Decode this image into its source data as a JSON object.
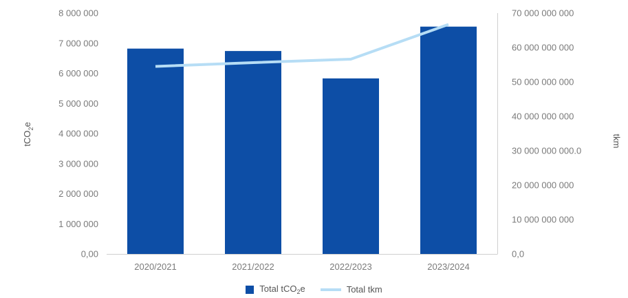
{
  "chart_data": {
    "type": "bar",
    "categories": [
      "2020/2021",
      "2021/2022",
      "2022/2023",
      "2023/2024"
    ],
    "series": [
      {
        "name": "Total tCO2e",
        "type": "bar",
        "axis": "left",
        "values": [
          6820000,
          6740000,
          5830000,
          7550000
        ],
        "color": "#0d4ea6"
      },
      {
        "name": "Total tkm",
        "type": "line",
        "axis": "right",
        "values": [
          54500000000,
          55600000000,
          56600000000,
          66700000000
        ],
        "color": "#b6ddf5"
      }
    ],
    "ylabel": "tCO2e",
    "ylabel_base": "tCO",
    "ylabel_sub": "2",
    "ylabel_suffix": "e",
    "y2label": "tkm",
    "ylim": [
      0,
      8000000
    ],
    "y2lim": [
      0,
      70000000000
    ],
    "yticks": [
      "0,00",
      "1 000 000",
      "2 000 000",
      "3 000 000",
      "4 000 000",
      "5 000 000",
      "6 000 000",
      "7 000 000",
      "8 000 000"
    ],
    "y2ticks": [
      "0,0",
      "10 000 000 000",
      "20 000 000 000",
      "30 000 000 000.0",
      "40 000 000 000",
      "50 000 000 000",
      "60 000 000 000",
      "70 000 000 000"
    ],
    "legend": {
      "position": "bottom",
      "bar_label_base": "Total tCO",
      "bar_label_sub": "2",
      "bar_label_suffix": "e",
      "line_label": "Total tkm"
    },
    "grid": false
  }
}
